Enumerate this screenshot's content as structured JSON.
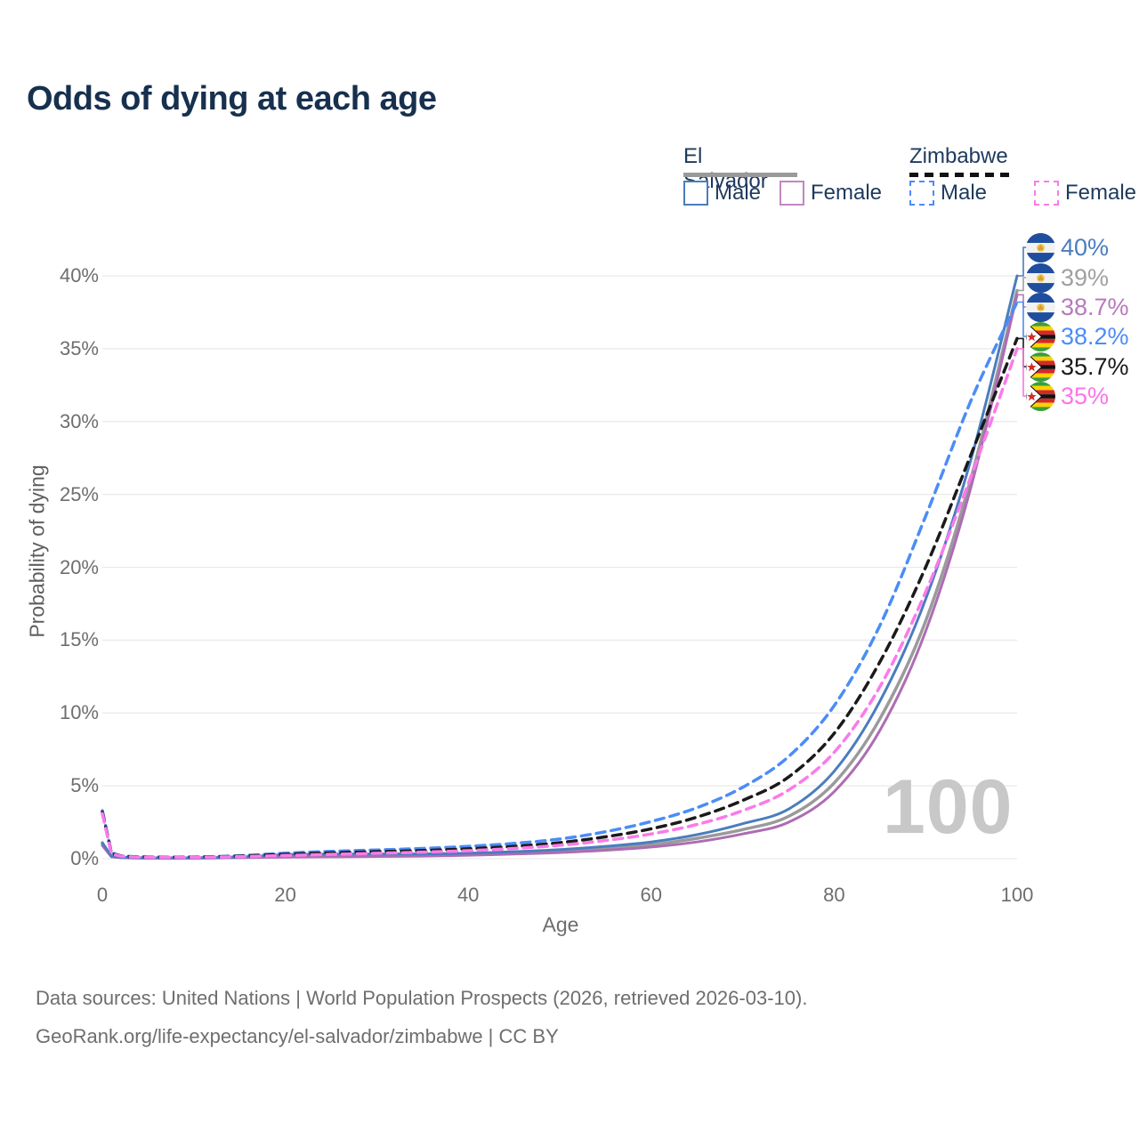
{
  "title": "Odds of dying at each age",
  "legend": {
    "groups": [
      {
        "label": "El Salvador",
        "line_style": "solid",
        "line_color": "#9a9a9a",
        "items": [
          {
            "label": "Male",
            "color": "#4a7dbf",
            "dashed": false
          },
          {
            "label": "Female",
            "color": "#c287c2",
            "dashed": false
          }
        ]
      },
      {
        "label": "Zimbabwe",
        "line_style": "dashed",
        "line_color": "#111111",
        "items": [
          {
            "label": "Male",
            "color": "#4b8cf8",
            "dashed": true
          },
          {
            "label": "Female",
            "color": "#fb7ae9",
            "dashed": true
          }
        ]
      }
    ]
  },
  "axes": {
    "x_title": "Age",
    "y_title": "Probability of dying",
    "x_ticks": [
      0,
      20,
      40,
      60,
      80,
      100
    ],
    "y_ticks": [
      0,
      5,
      10,
      15,
      20,
      25,
      30,
      35,
      40
    ],
    "y_tick_suffix": "%"
  },
  "watermark": "100",
  "footer": {
    "line1": "Data sources: United Nations | World Population Prospects (2026, retrieved 2026-03-10).",
    "line2": "GeoRank.org/life-expectancy/el-salvador/zimbabwe | CC BY"
  },
  "chart_data": {
    "type": "line",
    "title": "Odds of dying at each age",
    "xlabel": "Age",
    "ylabel": "Probability of dying",
    "xlim": [
      0,
      100
    ],
    "ylim": [
      0,
      40
    ],
    "grid": true,
    "legend_position": "top-right",
    "x": [
      0,
      1,
      2,
      5,
      10,
      15,
      20,
      25,
      30,
      35,
      40,
      45,
      50,
      55,
      60,
      65,
      70,
      75,
      80,
      85,
      90,
      95,
      100
    ],
    "series": [
      {
        "name": "El Salvador Male",
        "country": "El Salvador",
        "sex": "Male",
        "flag": "el-salvador",
        "color": "#4a7dbf",
        "dashed": false,
        "width": 3,
        "end_label": "40%",
        "end_label_color": "#4a7dbf",
        "values": [
          1.1,
          0.18,
          0.1,
          0.06,
          0.06,
          0.12,
          0.28,
          0.32,
          0.33,
          0.33,
          0.38,
          0.48,
          0.62,
          0.85,
          1.15,
          1.65,
          2.4,
          3.4,
          6.0,
          10.8,
          17.8,
          27.5,
          40.0
        ]
      },
      {
        "name": "El Salvador",
        "country": "El Salvador",
        "sex": "Both",
        "flag": "el-salvador",
        "color": "#9a9a9a",
        "dashed": false,
        "width": 3.5,
        "end_label": "39%",
        "end_label_color": "#a0a0a0",
        "values": [
          1.0,
          0.15,
          0.09,
          0.05,
          0.05,
          0.1,
          0.22,
          0.25,
          0.26,
          0.27,
          0.31,
          0.4,
          0.52,
          0.7,
          0.95,
          1.4,
          2.0,
          2.9,
          5.2,
          9.6,
          16.3,
          26.2,
          39.0
        ]
      },
      {
        "name": "El Salvador Female",
        "country": "El Salvador",
        "sex": "Female",
        "flag": "el-salvador",
        "color": "#ad6cb3",
        "dashed": false,
        "width": 3,
        "end_label": "38.7%",
        "end_label_color": "#b878bd",
        "values": [
          0.9,
          0.13,
          0.08,
          0.04,
          0.04,
          0.07,
          0.11,
          0.13,
          0.15,
          0.18,
          0.24,
          0.32,
          0.42,
          0.58,
          0.8,
          1.15,
          1.7,
          2.5,
          4.6,
          8.8,
          15.6,
          25.6,
          38.7
        ]
      },
      {
        "name": "Zimbabwe Male",
        "country": "Zimbabwe",
        "sex": "Male",
        "flag": "zimbabwe",
        "color": "#4b8cf8",
        "dashed": true,
        "width": 3.5,
        "end_label": "38.2%",
        "end_label_color": "#4b8cf8",
        "values": [
          3.3,
          0.4,
          0.2,
          0.12,
          0.12,
          0.2,
          0.38,
          0.5,
          0.6,
          0.7,
          0.85,
          1.05,
          1.35,
          1.85,
          2.55,
          3.5,
          4.9,
          7.0,
          10.5,
          16.0,
          23.5,
          31.5,
          38.2
        ]
      },
      {
        "name": "Zimbabwe",
        "country": "Zimbabwe",
        "sex": "Both",
        "flag": "zimbabwe",
        "color": "#1a1a1a",
        "dashed": true,
        "width": 3.5,
        "end_label": "35.7%",
        "end_label_color": "#1a1a1a",
        "values": [
          3.2,
          0.36,
          0.18,
          0.11,
          0.11,
          0.17,
          0.3,
          0.4,
          0.48,
          0.56,
          0.68,
          0.85,
          1.1,
          1.5,
          2.05,
          2.85,
          4.0,
          5.6,
          8.6,
          13.5,
          20.0,
          27.8,
          35.7
        ]
      },
      {
        "name": "Zimbabwe Female",
        "country": "Zimbabwe",
        "sex": "Female",
        "flag": "zimbabwe",
        "color": "#fb7ae9",
        "dashed": true,
        "width": 3.5,
        "end_label": "35%",
        "end_label_color": "#fc75e8",
        "values": [
          3.1,
          0.33,
          0.17,
          0.1,
          0.1,
          0.14,
          0.22,
          0.3,
          0.37,
          0.45,
          0.55,
          0.7,
          0.92,
          1.25,
          1.7,
          2.35,
          3.3,
          4.7,
          7.3,
          11.8,
          18.3,
          26.3,
          35.0
        ]
      }
    ]
  }
}
